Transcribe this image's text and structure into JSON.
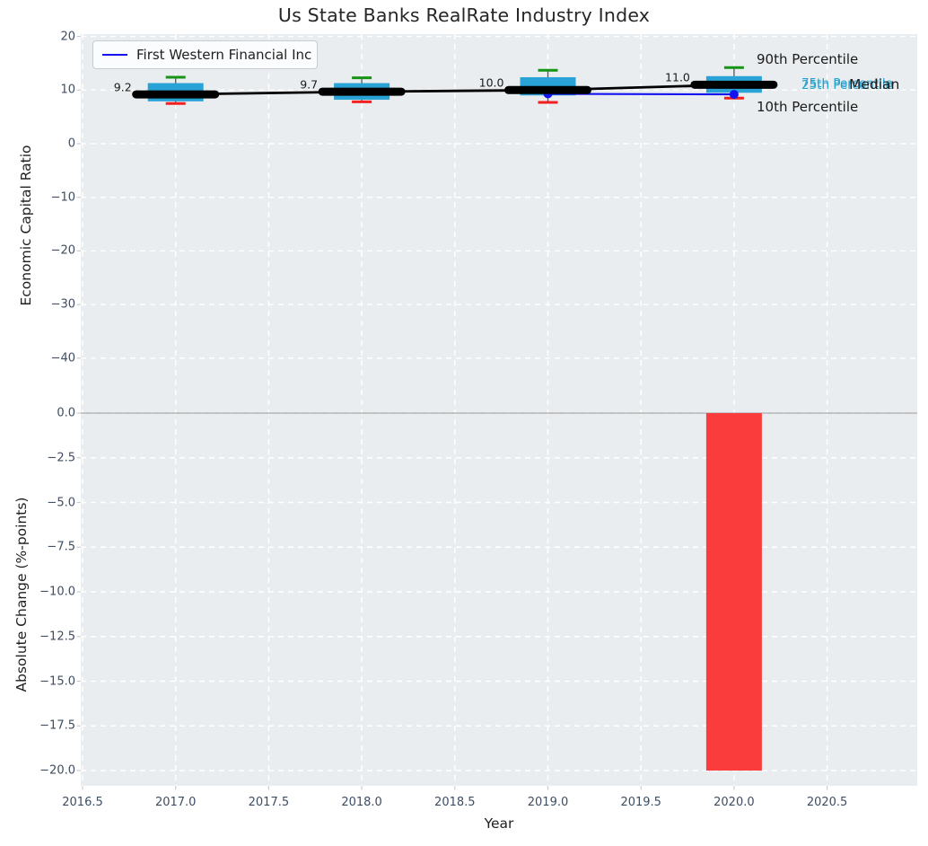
{
  "title": "Us State Banks RealRate Industry Index",
  "legend": {
    "label": "First Western Financial Inc",
    "position": "upper left"
  },
  "colors": {
    "plot_bg": "#e9edf0",
    "grid": "#ffffff",
    "tick_text": "#3d4d63",
    "box_fill": "#29a3d5",
    "whisker": "#555555",
    "cap_90th": "#169416",
    "cap_10th": "#f22020",
    "median_line": "#000000",
    "trend_line": "#000000",
    "company_line": "#1414f0",
    "bar": "#fa3c3c",
    "zero_line": "#b3b3b3",
    "annotation_dark": "#1a1a1a",
    "annotation_cyan": "#25a1cd",
    "tick_mark": "#c9ced6"
  },
  "annotations": [
    {
      "id": "p90",
      "text": "90th Percentile",
      "color": "#1a1a1a"
    },
    {
      "id": "p75",
      "text": "75th Percentile",
      "color": "#25a1cd"
    },
    {
      "id": "p25",
      "text": "25th Percentile",
      "color": "#25a1cd"
    },
    {
      "id": "median",
      "text": "Median",
      "color": "#1a1a1a"
    },
    {
      "id": "p10",
      "text": "10th Percentile",
      "color": "#1a1a1a"
    }
  ],
  "chart_data": [
    {
      "type": "box",
      "title": "Us State Banks RealRate Industry Index",
      "xlabel": "Year",
      "ylabel": "Economic Capital Ratio",
      "grid": true,
      "legend_position": "upper left",
      "ylim": [
        -45,
        20.5
      ],
      "yticks": [
        20,
        10,
        0,
        -10,
        -20,
        -30,
        -40
      ],
      "ytick_labels": [
        "20",
        "10",
        "0",
        "−10",
        "−20",
        "−30",
        "−40"
      ],
      "xlim": [
        2016.49,
        2020.99
      ],
      "xticks": [
        2016.5,
        2017.0,
        2017.5,
        2018.0,
        2018.5,
        2019.0,
        2019.5,
        2020.0,
        2020.5
      ],
      "xtick_labels": [
        "2016.5",
        "2017.0",
        "2017.5",
        "2018.0",
        "2018.5",
        "2019.0",
        "2019.5",
        "2020.0",
        "2020.5"
      ],
      "box_width_years": 0.3,
      "boxes": [
        {
          "year": 2017,
          "p10": 7.5,
          "p25": 7.9,
          "median": 9.2,
          "p75": 11.3,
          "p90": 12.4,
          "label": "9.2"
        },
        {
          "year": 2018,
          "p10": 7.8,
          "p25": 8.2,
          "median": 9.7,
          "p75": 11.3,
          "p90": 12.3,
          "label": "9.7"
        },
        {
          "year": 2019,
          "p10": 7.7,
          "p25": 9.0,
          "median": 10.0,
          "p75": 12.4,
          "p90": 13.7,
          "label": "10.0"
        },
        {
          "year": 2020,
          "p10": 8.5,
          "p25": 9.5,
          "median": 11.0,
          "p75": 12.6,
          "p90": 14.2,
          "label": "11.0"
        }
      ],
      "median_trend": {
        "x": [
          2017,
          2018,
          2019,
          2020
        ],
        "y": [
          9.2,
          9.7,
          10.0,
          11.0
        ]
      },
      "series": [
        {
          "name": "First Western Financial Inc",
          "x": [
            2019,
            2020
          ],
          "y": [
            9.3,
            9.2
          ],
          "color": "#1414f0"
        }
      ],
      "annotation_texts": [
        "90th Percentile",
        "75th Percentile",
        "25th Percentile",
        "Median",
        "10th Percentile"
      ]
    },
    {
      "type": "bar",
      "xlabel": "Year",
      "ylabel": "Absolute Change (%-points)",
      "grid": true,
      "ylim": [
        -21,
        1
      ],
      "yticks": [
        0.0,
        -2.5,
        -5.0,
        -7.5,
        -10.0,
        -12.5,
        -15.0,
        -17.5,
        -20.0
      ],
      "ytick_labels": [
        "0.0",
        "−2.5",
        "−5.0",
        "−7.5",
        "−10.0",
        "−12.5",
        "−15.0",
        "−17.5",
        "−20.0"
      ],
      "x": [
        2020
      ],
      "values": [
        -20.0
      ],
      "bar_width_years": 0.3,
      "zero_line": true
    }
  ]
}
